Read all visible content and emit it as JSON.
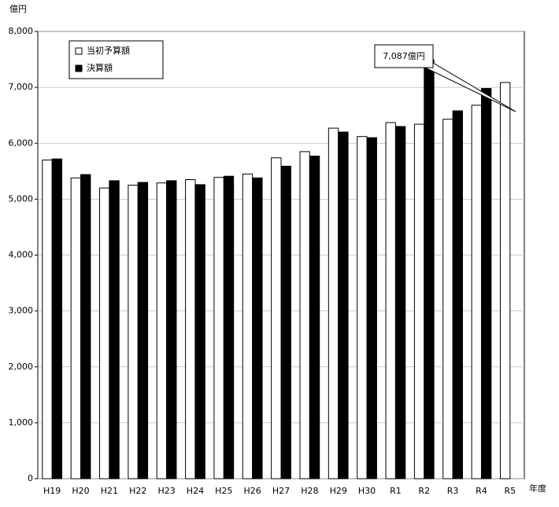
{
  "chart_data": {
    "type": "bar",
    "y_axis_label": "億円",
    "x_axis_label": "年度",
    "annotation": "7,087億円",
    "categories": [
      "H19",
      "H20",
      "H21",
      "H22",
      "H23",
      "H24",
      "H25",
      "H26",
      "H27",
      "H28",
      "H29",
      "H30",
      "R1",
      "R2",
      "R3",
      "R4",
      "R5"
    ],
    "series": [
      {
        "name": "当初予算額",
        "color": "#ffffff",
        "values": [
          5700,
          5380,
          5200,
          5250,
          5290,
          5350,
          5390,
          5450,
          5740,
          5850,
          6270,
          6120,
          6370,
          6340,
          6430,
          6680,
          7087
        ]
      },
      {
        "name": "決算額",
        "color": "#000000",
        "values": [
          5720,
          5440,
          5330,
          5300,
          5330,
          5260,
          5410,
          5380,
          5590,
          5770,
          6200,
          6100,
          6300,
          7490,
          6580,
          6980,
          null
        ]
      }
    ],
    "ylim": [
      0,
      8000
    ],
    "yticks": [
      0,
      {
        "value": 1000,
        "label": "1,000"
      },
      {
        "value": 2000,
        "label": "2,000"
      },
      {
        "value": 3000,
        "label": "3,000"
      },
      {
        "value": 4000,
        "label": "4,000"
      },
      {
        "value": 5000,
        "label": "5,000"
      },
      {
        "value": 6000,
        "label": "6,000"
      },
      {
        "value": 7000,
        "label": "7,000"
      },
      {
        "value": 8000,
        "label": "8,000"
      }
    ],
    "grid": true,
    "legend": "upper left"
  }
}
